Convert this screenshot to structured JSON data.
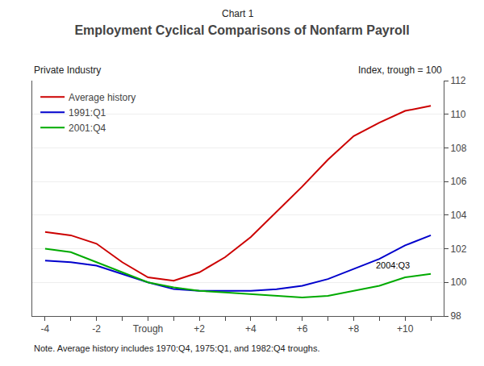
{
  "chart_data": {
    "type": "line",
    "supertitle": "Chart 1",
    "title": "Employment Cyclical Comparisons of Nonfarm Payroll",
    "subtitle": "Private Industry",
    "ylabel": "Index, trough = 100",
    "note": "Note. Average history includes 1970:Q4, 1975:Q1, and 1982:Q4 troughs.",
    "annotations": [
      {
        "text": "2004:Q3",
        "x": 8.8,
        "y": 100.65
      }
    ],
    "x": [
      -4,
      -3,
      -2,
      -1,
      0,
      1,
      2,
      3,
      4,
      5,
      6,
      7,
      8,
      9,
      10,
      11
    ],
    "xlim": [
      -4.5,
      11.5
    ],
    "xticks": [
      -4,
      {
        "value": -3,
        "label": null
      },
      -2,
      {
        "value": -1,
        "label": null
      },
      {
        "value": 0,
        "label": "Trough"
      },
      {
        "value": 1,
        "label": null
      },
      {
        "value": 2,
        "label": "+2"
      },
      {
        "value": 3,
        "label": null
      },
      {
        "value": 4,
        "label": "+4"
      },
      {
        "value": 5,
        "label": null
      },
      {
        "value": 6,
        "label": "+6"
      },
      {
        "value": 7,
        "label": null
      },
      {
        "value": 8,
        "label": "+8"
      },
      {
        "value": 9,
        "label": null
      },
      {
        "value": 10,
        "label": "+10"
      },
      {
        "value": 11,
        "label": null
      }
    ],
    "ylim": [
      98,
      112
    ],
    "yticks": [
      98,
      100,
      102,
      104,
      106,
      108,
      110,
      112
    ],
    "grid": "y",
    "legend": "upper left",
    "series": [
      {
        "name": "Average history",
        "color": "#cc0000",
        "values": [
          103.0,
          102.8,
          102.3,
          101.2,
          100.3,
          100.1,
          100.6,
          101.5,
          102.7,
          104.2,
          105.7,
          107.3,
          108.7,
          109.5,
          110.2,
          110.5
        ]
      },
      {
        "name": "1991:Q1",
        "color": "#0000cc",
        "values": [
          101.3,
          101.2,
          101.0,
          100.5,
          100.0,
          99.6,
          99.5,
          99.5,
          99.5,
          99.6,
          99.8,
          100.2,
          100.8,
          101.4,
          102.2,
          102.8
        ]
      },
      {
        "name": "2001:Q4",
        "color": "#00aa00",
        "values": [
          102.0,
          101.8,
          101.2,
          100.6,
          100.0,
          99.7,
          99.5,
          99.4,
          99.3,
          99.2,
          99.1,
          99.2,
          99.5,
          99.8,
          100.3,
          100.5
        ]
      }
    ]
  }
}
